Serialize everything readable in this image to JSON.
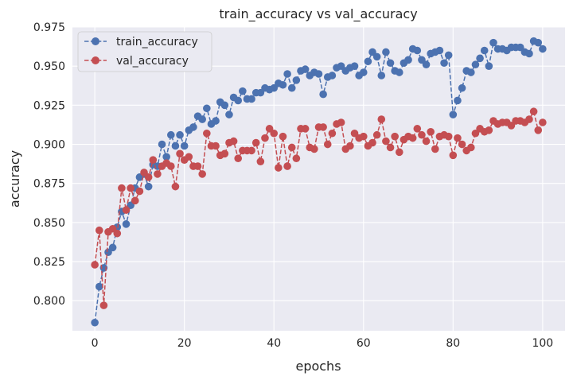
{
  "chart_data": {
    "type": "line",
    "title": "train_accuracy vs val_accuracy",
    "xlabel": "epochs",
    "ylabel": "accuracy",
    "xlim": [
      -5,
      105
    ],
    "ylim": [
      0.7808,
      0.975
    ],
    "x_ticks": [
      0,
      20,
      40,
      60,
      80,
      100
    ],
    "y_ticks": [
      0.8,
      0.825,
      0.85,
      0.875,
      0.9,
      0.925,
      0.95,
      0.975
    ],
    "y_tick_labels": [
      "0.800",
      "0.825",
      "0.850",
      "0.875",
      "0.900",
      "0.925",
      "0.950",
      "0.975"
    ],
    "grid": true,
    "legend_position": "upper-left",
    "x": [
      0,
      1,
      2,
      3,
      4,
      5,
      6,
      7,
      8,
      9,
      10,
      11,
      12,
      13,
      14,
      15,
      16,
      17,
      18,
      19,
      20,
      21,
      22,
      23,
      24,
      25,
      26,
      27,
      28,
      29,
      30,
      31,
      32,
      33,
      34,
      35,
      36,
      37,
      38,
      39,
      40,
      41,
      42,
      43,
      44,
      45,
      46,
      47,
      48,
      49,
      50,
      51,
      52,
      53,
      54,
      55,
      56,
      57,
      58,
      59,
      60,
      61,
      62,
      63,
      64,
      65,
      66,
      67,
      68,
      69,
      70,
      71,
      72,
      73,
      74,
      75,
      76,
      77,
      78,
      79,
      80,
      81,
      82,
      83,
      84,
      85,
      86,
      87,
      88,
      89,
      90,
      91,
      92,
      93,
      94,
      95,
      96,
      97,
      98,
      99,
      100
    ],
    "series": [
      {
        "name": "train_accuracy",
        "color": "#4C72B0",
        "values": [
          0.786,
          0.809,
          0.821,
          0.831,
          0.834,
          0.847,
          0.857,
          0.849,
          0.861,
          0.872,
          0.879,
          0.881,
          0.873,
          0.887,
          0.886,
          0.9,
          0.892,
          0.906,
          0.899,
          0.906,
          0.899,
          0.909,
          0.911,
          0.918,
          0.916,
          0.923,
          0.913,
          0.915,
          0.927,
          0.925,
          0.919,
          0.93,
          0.928,
          0.934,
          0.929,
          0.929,
          0.933,
          0.933,
          0.936,
          0.935,
          0.936,
          0.939,
          0.938,
          0.945,
          0.936,
          0.941,
          0.947,
          0.948,
          0.944,
          0.946,
          0.945,
          0.932,
          0.943,
          0.944,
          0.949,
          0.95,
          0.947,
          0.949,
          0.95,
          0.944,
          0.946,
          0.953,
          0.959,
          0.956,
          0.944,
          0.959,
          0.952,
          0.947,
          0.946,
          0.952,
          0.954,
          0.961,
          0.96,
          0.954,
          0.951,
          0.958,
          0.959,
          0.96,
          0.952,
          0.957,
          0.919,
          0.928,
          0.936,
          0.947,
          0.946,
          0.951,
          0.955,
          0.96,
          0.95,
          0.965,
          0.961,
          0.961,
          0.96,
          0.962,
          0.962,
          0.962,
          0.959,
          0.958,
          0.966,
          0.965,
          0.961
        ]
      },
      {
        "name": "val_accuracy",
        "color": "#C44E52",
        "values": [
          0.823,
          0.845,
          0.797,
          0.844,
          0.846,
          0.843,
          0.872,
          0.858,
          0.872,
          0.864,
          0.87,
          0.882,
          0.879,
          0.89,
          0.881,
          0.886,
          0.888,
          0.886,
          0.873,
          0.894,
          0.89,
          0.892,
          0.886,
          0.886,
          0.881,
          0.907,
          0.899,
          0.899,
          0.893,
          0.894,
          0.901,
          0.902,
          0.891,
          0.896,
          0.896,
          0.896,
          0.901,
          0.889,
          0.904,
          0.91,
          0.907,
          0.885,
          0.905,
          0.886,
          0.898,
          0.891,
          0.91,
          0.91,
          0.898,
          0.897,
          0.911,
          0.911,
          0.9,
          0.907,
          0.913,
          0.914,
          0.897,
          0.899,
          0.907,
          0.904,
          0.905,
          0.899,
          0.901,
          0.906,
          0.916,
          0.902,
          0.898,
          0.905,
          0.895,
          0.903,
          0.905,
          0.904,
          0.91,
          0.906,
          0.902,
          0.908,
          0.897,
          0.905,
          0.906,
          0.905,
          0.893,
          0.904,
          0.9,
          0.896,
          0.898,
          0.907,
          0.91,
          0.908,
          0.909,
          0.915,
          0.913,
          0.914,
          0.914,
          0.912,
          0.915,
          0.915,
          0.914,
          0.916,
          0.921,
          0.909,
          0.914
        ]
      }
    ]
  }
}
